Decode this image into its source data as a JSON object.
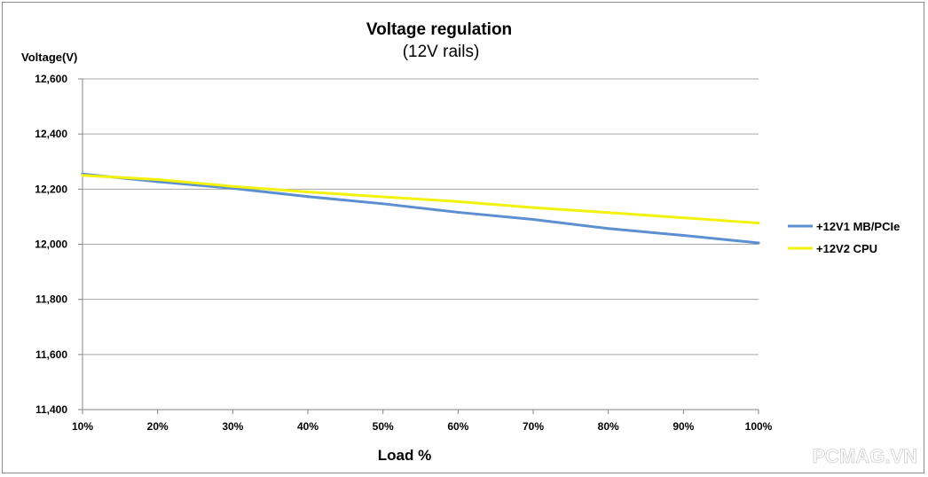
{
  "chart_data": {
    "type": "line",
    "title": "Voltage regulation",
    "subtitle": "(12V rails)",
    "xlabel": "Load %",
    "ylabel": "Voltage(V)",
    "categories": [
      "10%",
      "20%",
      "30%",
      "40%",
      "50%",
      "60%",
      "70%",
      "80%",
      "90%",
      "100%"
    ],
    "ylim": [
      11400,
      12600
    ],
    "yticks": [
      12600,
      12400,
      12200,
      12000,
      11800,
      11600,
      11400
    ],
    "ytick_labels": [
      "12,600",
      "12,400",
      "12,200",
      "12,000",
      "11,800",
      "11,600",
      "11,400"
    ],
    "grid": true,
    "legend_position": "right",
    "series": [
      {
        "name": "+12V1 MB/PCIe",
        "color": "#5b8fd1",
        "values": [
          12255,
          12227,
          12203,
          12173,
          12147,
          12116,
          12090,
          12057,
          12032,
          12005
        ]
      },
      {
        "name": "+12V2 CPU",
        "color": "#f2f20d",
        "values": [
          12250,
          12235,
          12210,
          12190,
          12172,
          12155,
          12133,
          12115,
          12096,
          12077
        ]
      }
    ]
  },
  "watermark": "PCMAG.VN"
}
